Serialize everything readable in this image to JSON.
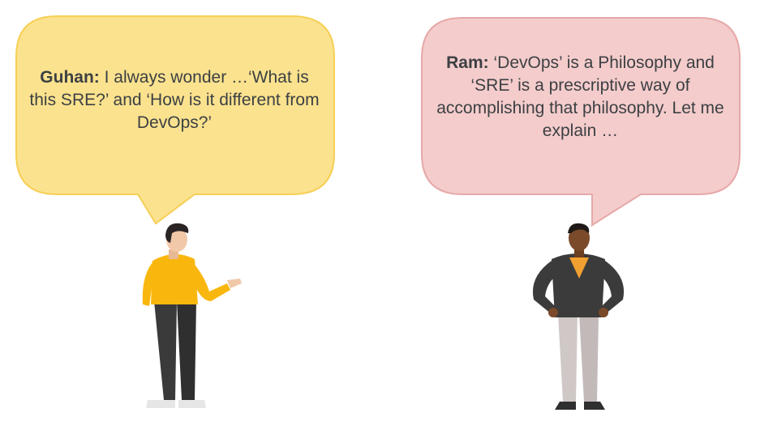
{
  "colors": {
    "guhan_bubble_fill": "#fbe28e",
    "guhan_bubble_stroke": "#f6cf55",
    "ram_bubble_fill": "#f4cccc",
    "ram_bubble_stroke": "#e6a8a8",
    "text": "#3c4043"
  },
  "conversation": {
    "guhan": {
      "speaker": "Guhan:",
      "message": " I always wonder …‘What is this SRE?’ and ‘How is it different from DevOps?’",
      "figure_icon": "man-yellow-sweater-pointing-icon"
    },
    "ram": {
      "speaker": "Ram:",
      "message": " ‘DevOps’ is a Philosophy and ‘SRE’ is a prescriptive way of accomplishing that philosophy. Let me explain …",
      "figure_icon": "man-dark-cardigan-hands-on-hips-icon"
    }
  }
}
